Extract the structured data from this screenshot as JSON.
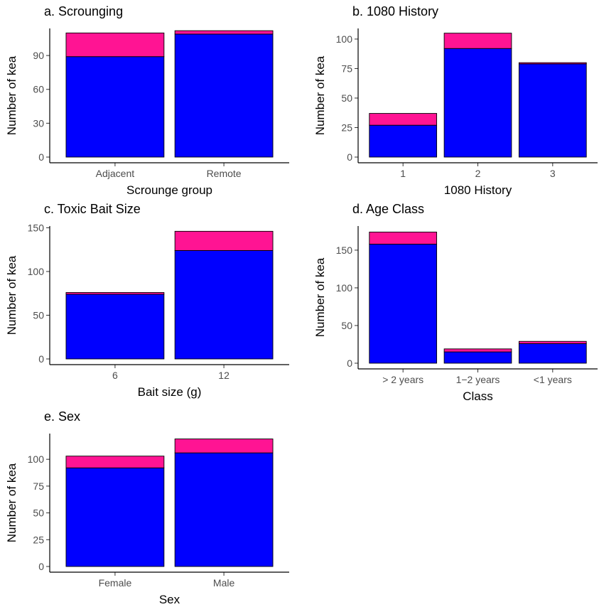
{
  "chart_data": [
    {
      "type": "bar",
      "title": "a. Scrounging",
      "xlabel": "Scrounge group",
      "ylabel": "Number of kea",
      "categories": [
        "Adjacent",
        "Remote"
      ],
      "ylim": [
        0,
        114
      ],
      "yticks": [
        0,
        30,
        60,
        90
      ],
      "stacked": true,
      "series": [
        {
          "values": [
            89,
            109
          ],
          "color": "#0000ff"
        },
        {
          "values": [
            21,
            3
          ],
          "color": "#ff1493"
        }
      ]
    },
    {
      "type": "bar",
      "title": "b. 1080 History",
      "xlabel": "1080 History",
      "ylabel": "Number of kea",
      "categories": [
        "1",
        "2",
        "3"
      ],
      "ylim": [
        0,
        109
      ],
      "yticks": [
        0,
        25,
        50,
        75,
        100
      ],
      "stacked": true,
      "series": [
        {
          "values": [
            27,
            92,
            79
          ],
          "color": "#0000ff"
        },
        {
          "values": [
            10,
            13,
            1
          ],
          "color": "#ff1493"
        }
      ]
    },
    {
      "type": "bar",
      "title": "c. Toxic Bait Size",
      "xlabel": "Bait size (g)",
      "ylabel": "Number of kea",
      "categories": [
        "6",
        "12"
      ],
      "ylim": [
        0,
        152
      ],
      "yticks": [
        0,
        50,
        100,
        150
      ],
      "stacked": true,
      "series": [
        {
          "values": [
            74,
            124
          ],
          "color": "#0000ff"
        },
        {
          "values": [
            2,
            22
          ],
          "color": "#ff1493"
        }
      ]
    },
    {
      "type": "bar",
      "title": "d. Age Class",
      "xlabel": "Class",
      "ylabel": "Number of kea",
      "categories": [
        "> 2 years",
        "1−2 years",
        "<1 years"
      ],
      "ylim": [
        0,
        182
      ],
      "yticks": [
        0,
        50,
        100,
        150
      ],
      "stacked": true,
      "series": [
        {
          "values": [
            158,
            15,
            26
          ],
          "color": "#0000ff"
        },
        {
          "values": [
            16,
            4,
            3
          ],
          "color": "#ff1493"
        }
      ]
    },
    {
      "type": "bar",
      "title": "e. Sex",
      "xlabel": "Sex",
      "ylabel": "Number of kea",
      "categories": [
        "Female",
        "Male"
      ],
      "ylim": [
        0,
        124
      ],
      "yticks": [
        0,
        25,
        50,
        75,
        100
      ],
      "stacked": true,
      "series": [
        {
          "values": [
            92,
            106
          ],
          "color": "#0000ff"
        },
        {
          "values": [
            11,
            13
          ],
          "color": "#ff1493"
        }
      ]
    }
  ]
}
